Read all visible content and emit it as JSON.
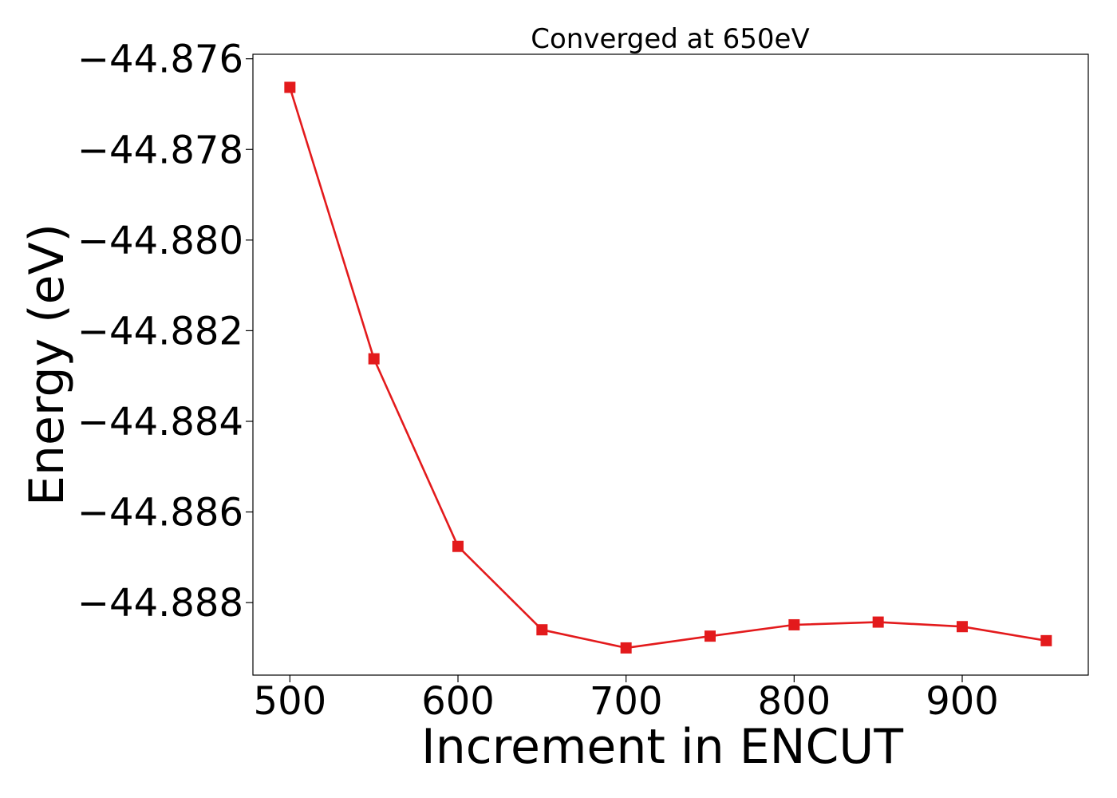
{
  "chart_data": {
    "type": "line",
    "title": "Converged at 650eV",
    "xlabel": "Increment in ENCUT",
    "ylabel": "Energy (eV)",
    "xlim": [
      478,
      975
    ],
    "ylim": [
      -44.8896,
      -44.8759
    ],
    "xticks": [
      500,
      600,
      700,
      800,
      900
    ],
    "xtick_labels": [
      "500",
      "600",
      "700",
      "800",
      "900"
    ],
    "yticks": [
      -44.876,
      -44.878,
      -44.88,
      -44.882,
      -44.884,
      -44.886,
      -44.888
    ],
    "ytick_labels": [
      "−44.876",
      "−44.878",
      "−44.880",
      "−44.882",
      "−44.884",
      "−44.886",
      "−44.888"
    ],
    "grid": false,
    "series": [
      {
        "color": "#e31a1c",
        "marker": "square",
        "x": [
          500,
          550,
          600,
          650,
          700,
          750,
          800,
          850,
          900,
          950
        ],
        "y": [
          -44.87663,
          -44.88262,
          -44.88676,
          -44.8886,
          -44.889,
          -44.88874,
          -44.88849,
          -44.88843,
          -44.88853,
          -44.88884
        ]
      }
    ]
  }
}
